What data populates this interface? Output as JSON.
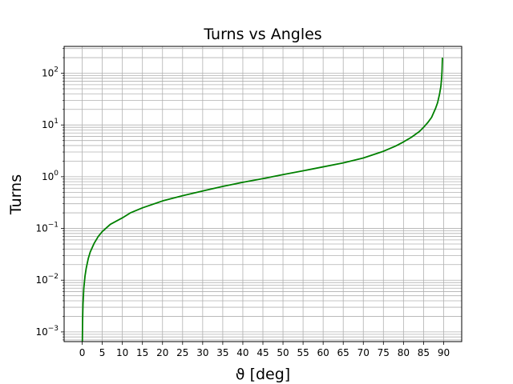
{
  "chart_data": {
    "type": "line",
    "title": "Turns vs Angles",
    "xlabel": "ϑ [deg]",
    "ylabel": "Turns",
    "xlim": [
      -4.5,
      94.5
    ],
    "ylim": [
      0.00065,
      330
    ],
    "yscale": "log",
    "grid": true,
    "grid_minor": true,
    "x_ticks": [
      0,
      5,
      10,
      15,
      20,
      25,
      30,
      35,
      40,
      45,
      50,
      55,
      60,
      65,
      70,
      75,
      80,
      85,
      90
    ],
    "x_tick_labels": [
      "0",
      "5",
      "10",
      "15",
      "20",
      "25",
      "30",
      "35",
      "40",
      "45",
      "50",
      "55",
      "60",
      "65",
      "70",
      "75",
      "80",
      "85",
      "90"
    ],
    "y_ticks": [
      0.001,
      0.01,
      0.1,
      1,
      10,
      100
    ],
    "y_tick_labels": [
      {
        "base": "10",
        "exp": "−3"
      },
      {
        "base": "10",
        "exp": "−2"
      },
      {
        "base": "10",
        "exp": "−1"
      },
      {
        "base": "10",
        "exp": "0"
      },
      {
        "base": "10",
        "exp": "1"
      },
      {
        "base": "10",
        "exp": "2"
      }
    ],
    "series": [
      {
        "color": "#008000",
        "x": [
          0.04,
          0.1,
          0.2,
          0.4,
          0.7,
          1,
          1.5,
          2,
          3,
          4,
          5,
          7,
          10,
          12,
          15,
          20,
          25,
          30,
          35,
          40,
          45,
          50,
          55,
          60,
          65,
          70,
          75,
          78,
          80,
          82,
          84,
          85,
          86,
          87,
          88,
          88.5,
          89,
          89.3,
          89.5,
          89.6,
          89.7
        ],
        "y": [
          0.00065,
          0.0017,
          0.0035,
          0.007,
          0.012,
          0.017,
          0.026,
          0.035,
          0.052,
          0.07,
          0.087,
          0.12,
          0.16,
          0.2,
          0.25,
          0.34,
          0.43,
          0.53,
          0.65,
          0.78,
          0.92,
          1.1,
          1.3,
          1.55,
          1.85,
          2.3,
          3.1,
          3.9,
          4.7,
          5.8,
          7.5,
          9,
          11,
          14,
          21,
          27,
          40,
          55,
          80,
          110,
          200
        ]
      }
    ]
  }
}
